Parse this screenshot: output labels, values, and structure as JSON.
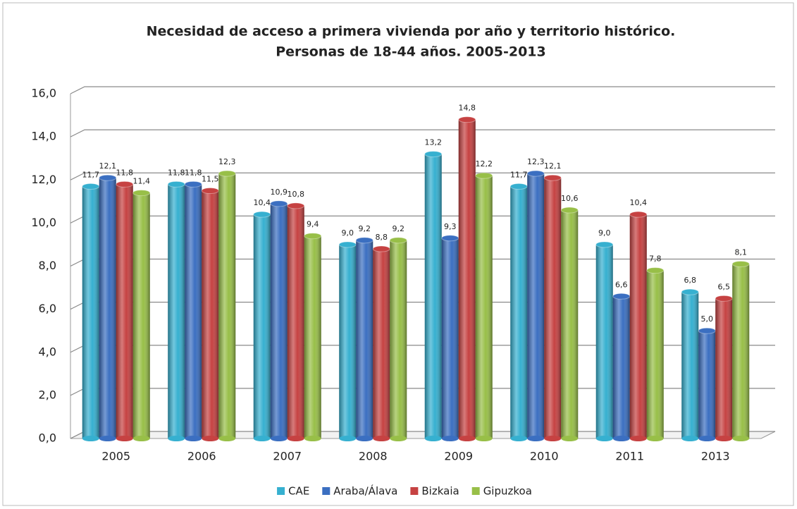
{
  "chart_data": {
    "type": "bar",
    "title": [
      "Necesidad de acceso a primera vivienda por año y territorio histórico.",
      "Personas de 18-44 años. 2005-2013"
    ],
    "categories": [
      "2005",
      "2006",
      "2007",
      "2008",
      "2009",
      "2010",
      "2011",
      "2013"
    ],
    "series": [
      {
        "name": "CAE",
        "color": "#36b0d0",
        "values": [
          11.7,
          11.8,
          10.4,
          9.0,
          13.2,
          11.7,
          9.0,
          6.8
        ],
        "value_labels": [
          "11,7",
          "11,8",
          "10,4",
          "9,0",
          "13,2",
          "11,7",
          "9,0",
          "6,8"
        ]
      },
      {
        "name": "Araba/Álava",
        "color": "#3b6fc1",
        "values": [
          12.1,
          11.8,
          10.9,
          9.2,
          9.3,
          12.3,
          6.6,
          5.0
        ],
        "value_labels": [
          "12,1",
          "11,8",
          "10,9",
          "9,2",
          "9,3",
          "12,3",
          "6,6",
          "5,0"
        ]
      },
      {
        "name": "Bizkaia",
        "color": "#c64242",
        "values": [
          11.8,
          11.5,
          10.8,
          8.8,
          14.8,
          12.1,
          10.4,
          6.5
        ],
        "value_labels": [
          "11,8",
          "11,5",
          "10,8",
          "8,8",
          "14,8",
          "12,1",
          "10,4",
          "6,5"
        ]
      },
      {
        "name": "Gipuzkoa",
        "color": "#98bf48",
        "values": [
          11.4,
          12.3,
          9.4,
          9.2,
          12.2,
          10.6,
          7.8,
          8.1
        ],
        "value_labels": [
          "11,4",
          "12,3",
          "9,4",
          "9,2",
          "12,2",
          "10,6",
          "7,8",
          "8,1"
        ]
      }
    ],
    "ylim": [
      0,
      16
    ],
    "yticks": [
      {
        "value": 0,
        "label": "0,0"
      },
      {
        "value": 2,
        "label": "2,0"
      },
      {
        "value": 4,
        "label": "4,0"
      },
      {
        "value": 6,
        "label": "6,0"
      },
      {
        "value": 8,
        "label": "8,0"
      },
      {
        "value": 10,
        "label": "10,0"
      },
      {
        "value": 12,
        "label": "12,0"
      },
      {
        "value": 14,
        "label": "14,0"
      },
      {
        "value": 16,
        "label": "16,0"
      }
    ],
    "grid": true,
    "legend": "bottom"
  }
}
